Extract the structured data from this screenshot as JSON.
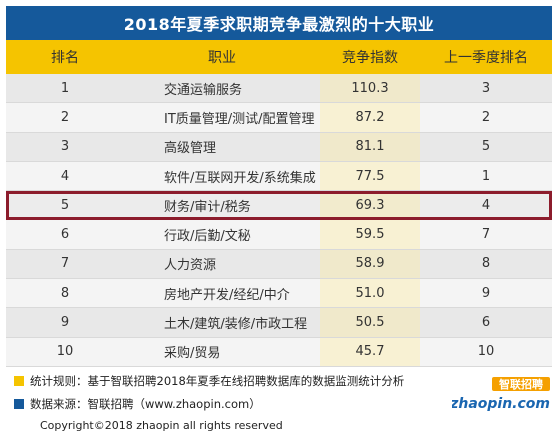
{
  "chart_data": {
    "type": "table",
    "title": "2018年夏季求职期竞争最激烈的十大职业",
    "columns": [
      "排名",
      "职业",
      "竞争指数",
      "上一季度排名"
    ],
    "rows": [
      {
        "rank": "1",
        "job": "交通运输服务",
        "index": "110.3",
        "prev": "3"
      },
      {
        "rank": "2",
        "job": "IT质量管理/测试/配置管理",
        "index": "87.2",
        "prev": "2"
      },
      {
        "rank": "3",
        "job": "高级管理",
        "index": "81.1",
        "prev": "5"
      },
      {
        "rank": "4",
        "job": "软件/互联网开发/系统集成",
        "index": "77.5",
        "prev": "1"
      },
      {
        "rank": "5",
        "job": "财务/审计/税务",
        "index": "69.3",
        "prev": "4"
      },
      {
        "rank": "6",
        "job": "行政/后勤/文秘",
        "index": "59.5",
        "prev": "7"
      },
      {
        "rank": "7",
        "job": "人力资源",
        "index": "58.9",
        "prev": "8"
      },
      {
        "rank": "8",
        "job": "房地产开发/经纪/中介",
        "index": "51.0",
        "prev": "9"
      },
      {
        "rank": "9",
        "job": "土木/建筑/装修/市政工程",
        "index": "50.5",
        "prev": "6"
      },
      {
        "rank": "10",
        "job": "采购/贸易",
        "index": "45.7",
        "prev": "10"
      }
    ],
    "highlighted_rank": "5"
  },
  "footer": {
    "rule_text": "统计规则：基于智联招聘2018年夏季在线招聘数据库的数据监测统计分析",
    "source_text": "数据来源：智联招聘（www.zhaopin.com）",
    "copyright": "Copyright©2018 zhaopin all rights reserved"
  },
  "logo": {
    "cn_text": "智联招聘",
    "en_text": "zhaopin.com"
  },
  "colors": {
    "title_bg": "#15599b",
    "header_bg": "#f5c400",
    "highlight_border": "#8c1c2c",
    "rule_swatch": "#f5c400",
    "source_swatch": "#15599b"
  }
}
